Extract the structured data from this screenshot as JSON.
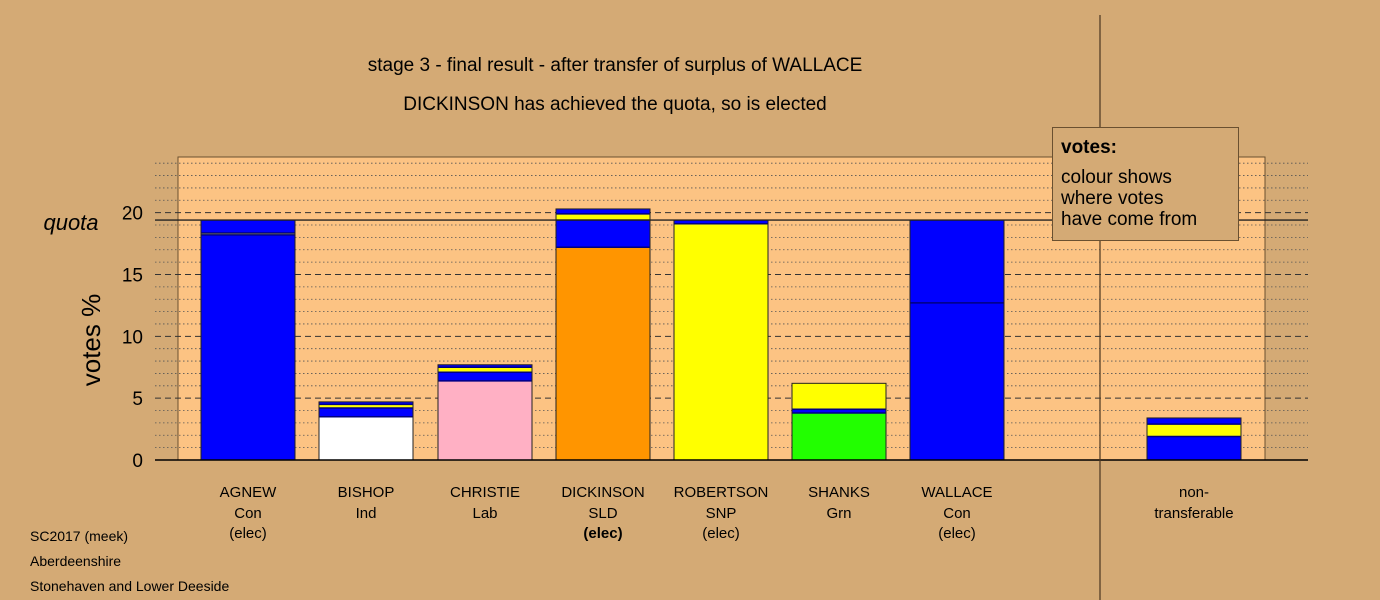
{
  "titles": {
    "line1": "stage 3 - final result - after transfer of surplus of WALLACE",
    "line2": "DICKINSON has achieved the quota, so is elected"
  },
  "legend": {
    "title": "votes:",
    "line1": "colour shows",
    "line2": "where votes",
    "line3": "have come from"
  },
  "footer": {
    "line1": "SC2017 (meek)",
    "line2": "Aberdeenshire",
    "line3": "Stonehaven and Lower Deeside"
  },
  "colors": {
    "background": "#d4aa75",
    "plot_area": "#fcc383",
    "Con": "#0000ff",
    "Ind": "#ffffff",
    "Lab": "#ffb0c4",
    "SLD": "#ff9500",
    "SNP": "#ffff00",
    "Grn": "#22ff00",
    "transfer_line": "#000080"
  },
  "chart_data": {
    "type": "bar",
    "stacked": true,
    "ylabel": "votes %",
    "quota_label": "quota",
    "quota": 19.4,
    "ylim": [
      0,
      24.5
    ],
    "yticks": [
      0,
      5,
      10,
      15,
      20
    ],
    "grid": "dotted minor lines every 1, dashed major lines every 5",
    "legend_position": "top-right",
    "categories": [
      {
        "name": "AGNEW",
        "party": "Con",
        "status": "(elec)",
        "status_bold": false
      },
      {
        "name": "BISHOP",
        "party": "Ind",
        "status": "",
        "status_bold": false
      },
      {
        "name": "CHRISTIE",
        "party": "Lab",
        "status": "",
        "status_bold": false
      },
      {
        "name": "DICKINSON",
        "party": "SLD",
        "status": "(elec)",
        "status_bold": true
      },
      {
        "name": "ROBERTSON",
        "party": "SNP",
        "status": "(elec)",
        "status_bold": false
      },
      {
        "name": "SHANKS",
        "party": "Grn",
        "status": "",
        "status_bold": false
      },
      {
        "name": "WALLACE",
        "party": "Con",
        "status": "(elec)",
        "status_bold": false
      },
      {
        "name": "non-",
        "party": "transferable",
        "status": "",
        "status_bold": false
      }
    ],
    "stacks": [
      [
        {
          "source": "Con",
          "value": 18.2
        },
        {
          "source": "SNP",
          "value": 0.15
        },
        {
          "source": "Con",
          "value": 1.05
        }
      ],
      [
        {
          "source": "Ind",
          "value": 3.5
        },
        {
          "source": "Con",
          "value": 0.7
        },
        {
          "source": "SNP",
          "value": 0.3
        },
        {
          "source": "Con",
          "value": 0.2
        }
      ],
      [
        {
          "source": "Lab",
          "value": 6.4
        },
        {
          "source": "Con",
          "value": 0.7
        },
        {
          "source": "SNP",
          "value": 0.4
        },
        {
          "source": "Con",
          "value": 0.2
        }
      ],
      [
        {
          "source": "SLD",
          "value": 17.2
        },
        {
          "source": "Con",
          "value": 2.2
        },
        {
          "source": "SNP",
          "value": 0.5
        },
        {
          "source": "Con",
          "value": 0.4
        }
      ],
      [
        {
          "source": "SNP",
          "value": 19.1
        },
        {
          "source": "Con",
          "value": 0.3
        }
      ],
      [
        {
          "source": "Grn",
          "value": 3.8
        },
        {
          "source": "Con",
          "value": 0.3
        },
        {
          "source": "SNP",
          "value": 2.1
        }
      ],
      [
        {
          "source": "Con",
          "value": 12.7
        },
        {
          "source": "Con",
          "value": 6.7
        }
      ],
      [
        {
          "source": "Con",
          "value": 1.9
        },
        {
          "source": "SNP",
          "value": 1.0
        },
        {
          "source": "Con",
          "value": 0.5
        }
      ]
    ]
  }
}
